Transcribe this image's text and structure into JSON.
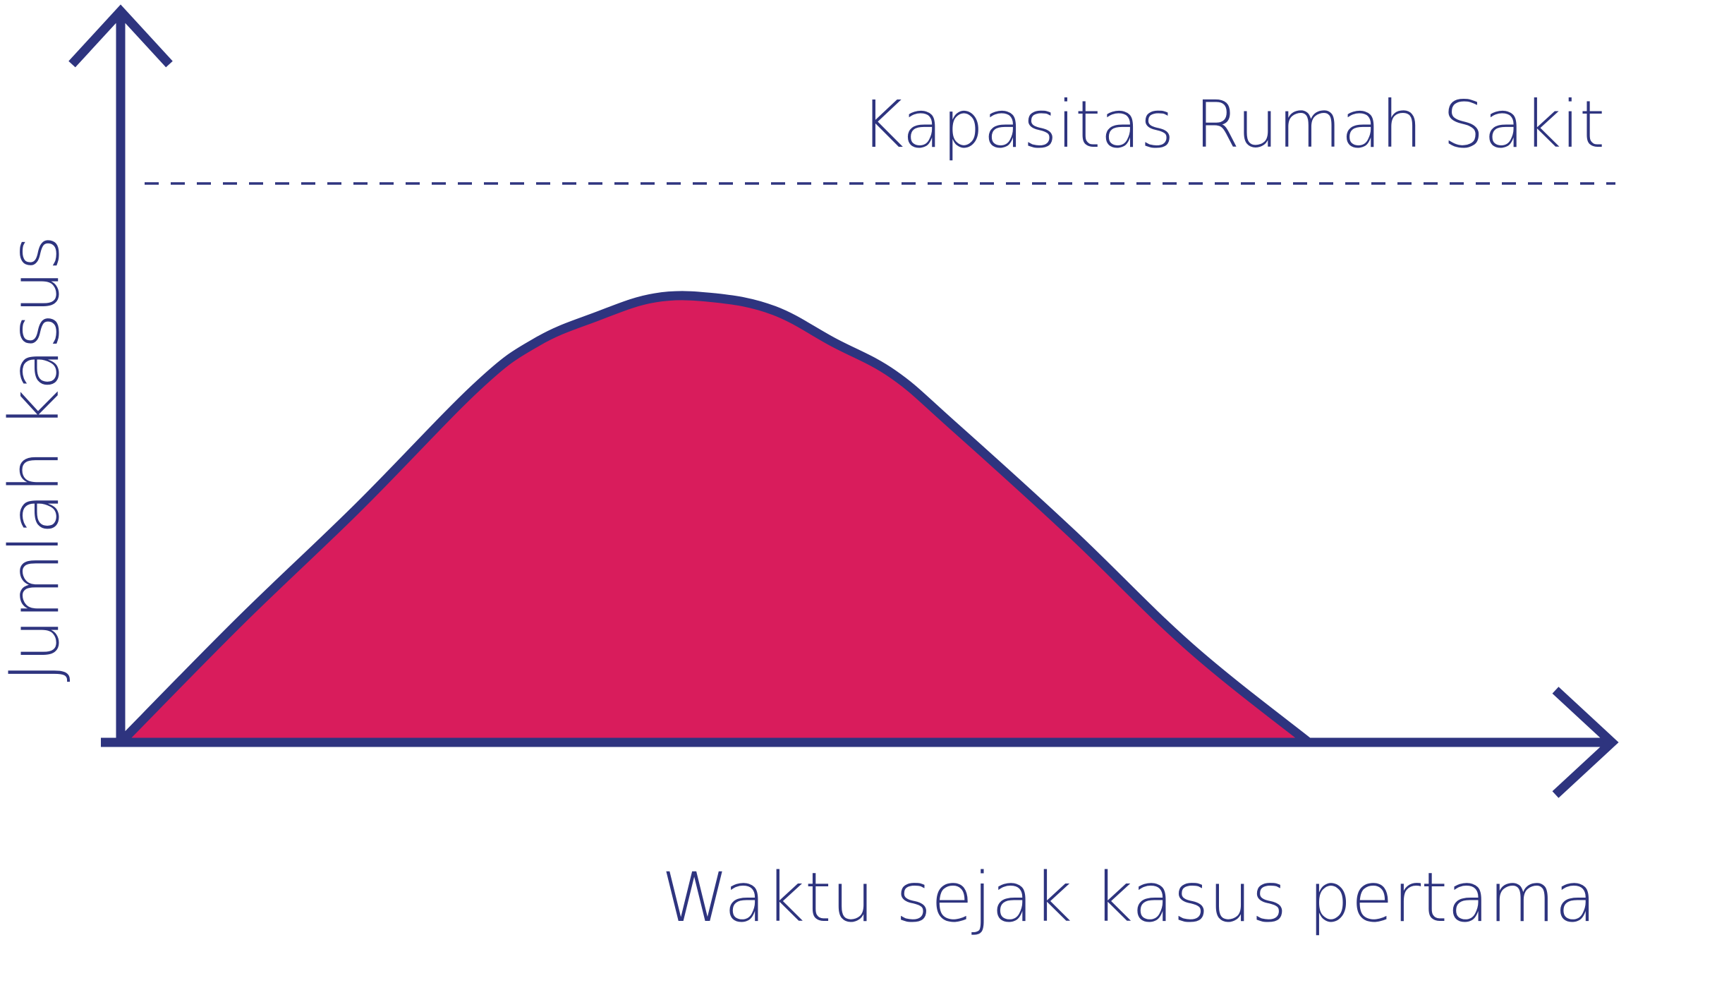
{
  "chart_data": {
    "type": "area",
    "xlabel": "Waktu sejak kasus pertama",
    "ylabel": "Jumlah kasus",
    "x": [
      0,
      0.1,
      0.2,
      0.3,
      0.35,
      0.4,
      0.45,
      0.5,
      0.55,
      0.6,
      0.65,
      0.7,
      0.8,
      0.9,
      1.0
    ],
    "values": [
      0,
      0.19,
      0.37,
      0.56,
      0.63,
      0.67,
      0.7,
      0.7,
      0.68,
      0.63,
      0.58,
      0.5,
      0.33,
      0.15,
      0
    ],
    "xlim": [
      0,
      1
    ],
    "ylim": [
      0,
      1.16
    ],
    "reference_lines": [
      {
        "label": "Kapasitas Rumah Sakit",
        "y": 0.88,
        "style": "dashed"
      }
    ],
    "grid": false,
    "legend": "none",
    "colors": {
      "axis": "#2e347f",
      "fill": "#d91c5c",
      "outline": "#2e347f",
      "text": "#2e347f",
      "reference_line": "#2e347f"
    }
  }
}
